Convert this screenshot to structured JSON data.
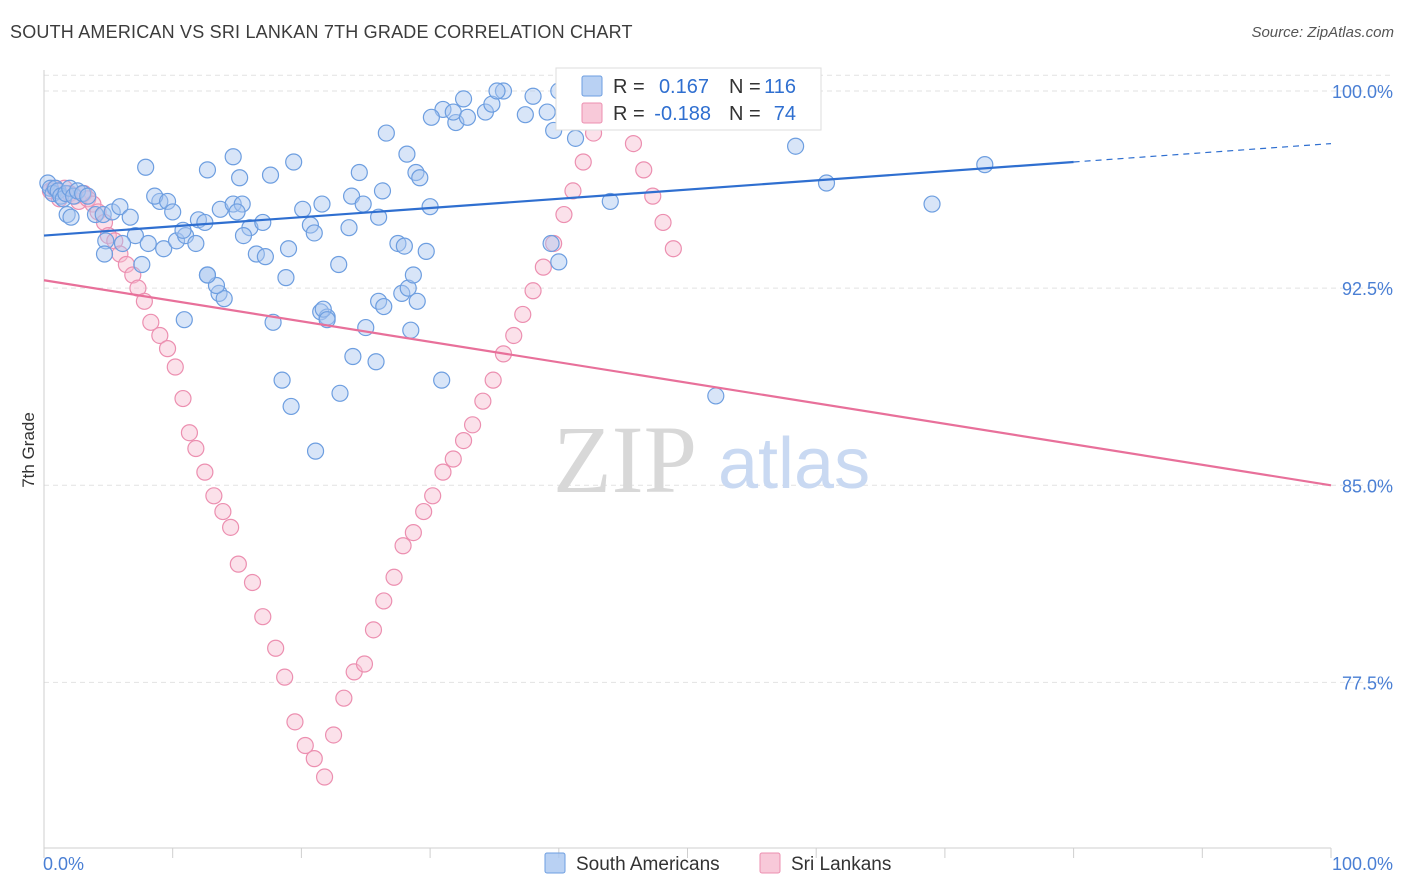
{
  "header": {
    "title": "SOUTH AMERICAN VS SRI LANKAN 7TH GRADE CORRELATION CHART",
    "source": "Source: ZipAtlas.com"
  },
  "watermark": {
    "zip": "ZIP",
    "atlas": "atlas"
  },
  "colors": {
    "blue_fill": "#a8c6f0",
    "blue_stroke": "#6d9ee0",
    "blue_line": "#2f6fd0",
    "pink_fill": "#f6bcd0",
    "pink_stroke": "#ec8fb0",
    "pink_line": "#e8709a",
    "grid": "#e2e2e2",
    "tick_text": "#4a7fd4"
  },
  "legend": {
    "r_label": "R =",
    "n_label": "N =",
    "series": [
      {
        "r": "0.167",
        "n": "116"
      },
      {
        "r": "-0.188",
        "n": "74"
      }
    ]
  },
  "chart_data": {
    "type": "scatter",
    "title": "SOUTH AMERICAN VS SRI LANKAN 7TH GRADE CORRELATION CHART",
    "xlabel": "",
    "ylabel": "7th Grade",
    "xlim": [
      0,
      100
    ],
    "ylim": [
      71.2,
      100.8
    ],
    "x_tick_labels": [
      "0.0%",
      "100.0%"
    ],
    "y_ticks": [
      100.0,
      92.5,
      85.0,
      77.5
    ],
    "y_tick_labels": [
      "100.0%",
      "92.5%",
      "85.0%",
      "77.5%"
    ],
    "grid": true,
    "legend_position": "top-center",
    "series": [
      {
        "name": "South Americans",
        "color": "blue",
        "r": 0.167,
        "n": 116,
        "trend": {
          "x0": 0,
          "y0": 94.5,
          "x1": 80,
          "y1": 97.3,
          "dash_to": 100,
          "dash_y": 98.0
        },
        "points": [
          [
            0.3,
            96.5
          ],
          [
            0.5,
            96.3
          ],
          [
            0.7,
            96.1
          ],
          [
            0.9,
            96.3
          ],
          [
            1.1,
            96.2
          ],
          [
            1.3,
            96.0
          ],
          [
            1.5,
            95.9
          ],
          [
            1.7,
            96.1
          ],
          [
            2.0,
            96.3
          ],
          [
            2.3,
            96.0
          ],
          [
            2.6,
            96.2
          ],
          [
            3.0,
            96.1
          ],
          [
            3.4,
            96.0
          ],
          [
            1.8,
            95.3
          ],
          [
            2.1,
            95.2
          ],
          [
            4.0,
            95.3
          ],
          [
            4.6,
            95.3
          ],
          [
            5.3,
            95.4
          ],
          [
            5.9,
            95.6
          ],
          [
            6.7,
            95.2
          ],
          [
            7.1,
            94.5
          ],
          [
            6.1,
            94.2
          ],
          [
            4.8,
            94.3
          ],
          [
            8.1,
            94.2
          ],
          [
            4.7,
            93.8
          ],
          [
            7.6,
            93.4
          ],
          [
            9.3,
            94.0
          ],
          [
            10.3,
            94.3
          ],
          [
            11.0,
            94.5
          ],
          [
            10.8,
            94.7
          ],
          [
            9.0,
            95.8
          ],
          [
            8.6,
            96.0
          ],
          [
            9.6,
            95.8
          ],
          [
            10.0,
            95.4
          ],
          [
            7.9,
            97.1
          ],
          [
            12.0,
            95.1
          ],
          [
            12.5,
            95.0
          ],
          [
            13.7,
            95.5
          ],
          [
            14.7,
            95.7
          ],
          [
            15.4,
            95.7
          ],
          [
            15.0,
            95.4
          ],
          [
            16.0,
            94.8
          ],
          [
            15.5,
            94.5
          ],
          [
            17.0,
            95.0
          ],
          [
            11.8,
            94.2
          ],
          [
            12.7,
            93.0
          ],
          [
            13.6,
            92.3
          ],
          [
            14.0,
            92.1
          ],
          [
            13.4,
            92.6
          ],
          [
            12.7,
            93.0
          ],
          [
            16.5,
            93.8
          ],
          [
            17.2,
            93.7
          ],
          [
            19.0,
            94.0
          ],
          [
            18.8,
            92.9
          ],
          [
            20.1,
            95.5
          ],
          [
            20.7,
            94.9
          ],
          [
            21.0,
            94.6
          ],
          [
            21.6,
            95.7
          ],
          [
            19.4,
            97.3
          ],
          [
            17.6,
            96.8
          ],
          [
            15.2,
            96.7
          ],
          [
            14.7,
            97.5
          ],
          [
            12.7,
            97.0
          ],
          [
            22.9,
            93.4
          ],
          [
            23.7,
            94.8
          ],
          [
            23.9,
            96.0
          ],
          [
            24.5,
            96.9
          ],
          [
            24.8,
            95.7
          ],
          [
            26.0,
            95.2
          ],
          [
            26.3,
            96.2
          ],
          [
            26.6,
            98.4
          ],
          [
            27.5,
            94.2
          ],
          [
            28.0,
            94.1
          ],
          [
            27.8,
            92.3
          ],
          [
            28.3,
            92.5
          ],
          [
            28.7,
            93.0
          ],
          [
            29.0,
            92.0
          ],
          [
            28.2,
            97.6
          ],
          [
            28.9,
            96.9
          ],
          [
            29.2,
            96.7
          ],
          [
            29.7,
            93.9
          ],
          [
            30.0,
            95.6
          ],
          [
            25.0,
            91.0
          ],
          [
            26.0,
            92.0
          ],
          [
            26.4,
            91.8
          ],
          [
            21.5,
            91.6
          ],
          [
            22.0,
            91.4
          ],
          [
            21.7,
            91.7
          ],
          [
            22.0,
            91.3
          ],
          [
            23.0,
            88.5
          ],
          [
            24.0,
            89.9
          ],
          [
            25.8,
            89.7
          ],
          [
            30.9,
            89.0
          ],
          [
            17.8,
            91.2
          ],
          [
            19.2,
            88.0
          ],
          [
            18.5,
            89.0
          ],
          [
            21.1,
            86.3
          ],
          [
            28.5,
            90.9
          ],
          [
            10.9,
            91.3
          ],
          [
            31.0,
            99.3
          ],
          [
            30.1,
            99.0
          ],
          [
            32.0,
            98.8
          ],
          [
            31.8,
            99.2
          ],
          [
            32.6,
            99.7
          ],
          [
            32.9,
            99.0
          ],
          [
            34.3,
            99.2
          ],
          [
            34.8,
            99.5
          ],
          [
            35.7,
            100.0
          ],
          [
            35.2,
            100.0
          ],
          [
            39.1,
            99.2
          ],
          [
            38.0,
            99.8
          ],
          [
            37.4,
            99.1
          ],
          [
            39.6,
            98.5
          ],
          [
            40.0,
            100.0
          ],
          [
            41.3,
            98.2
          ],
          [
            52.9,
            100.0
          ],
          [
            49.0,
            99.0
          ],
          [
            50.0,
            98.9
          ],
          [
            60.8,
            96.5
          ],
          [
            69.0,
            95.7
          ],
          [
            73.1,
            97.2
          ],
          [
            58.4,
            97.9
          ],
          [
            39.4,
            94.2
          ],
          [
            40.0,
            93.5
          ],
          [
            52.2,
            88.4
          ],
          [
            44.0,
            95.8
          ]
        ]
      },
      {
        "name": "Sri Lankans",
        "color": "pink",
        "r": -0.188,
        "n": 74,
        "trend": {
          "x0": 0,
          "y0": 92.8,
          "x1": 100,
          "y1": 85.0
        },
        "points": [
          [
            0.5,
            96.2
          ],
          [
            0.8,
            96.3
          ],
          [
            1.2,
            95.9
          ],
          [
            1.6,
            96.3
          ],
          [
            2.0,
            96.1
          ],
          [
            2.4,
            96.0
          ],
          [
            2.7,
            95.8
          ],
          [
            3.1,
            96.1
          ],
          [
            3.4,
            95.9
          ],
          [
            3.8,
            95.7
          ],
          [
            4.2,
            95.4
          ],
          [
            4.7,
            95.0
          ],
          [
            5.0,
            94.5
          ],
          [
            5.5,
            94.3
          ],
          [
            5.9,
            93.8
          ],
          [
            6.4,
            93.4
          ],
          [
            6.9,
            93.0
          ],
          [
            7.3,
            92.5
          ],
          [
            7.8,
            92.0
          ],
          [
            8.3,
            91.2
          ],
          [
            9.0,
            90.7
          ],
          [
            9.6,
            90.2
          ],
          [
            10.2,
            89.5
          ],
          [
            10.8,
            88.3
          ],
          [
            11.3,
            87.0
          ],
          [
            11.8,
            86.4
          ],
          [
            12.5,
            85.5
          ],
          [
            13.2,
            84.6
          ],
          [
            13.9,
            84.0
          ],
          [
            14.5,
            83.4
          ],
          [
            15.1,
            82.0
          ],
          [
            16.2,
            81.3
          ],
          [
            17.0,
            80.0
          ],
          [
            18.0,
            78.8
          ],
          [
            18.7,
            77.7
          ],
          [
            19.5,
            76.0
          ],
          [
            20.3,
            75.1
          ],
          [
            21.0,
            74.6
          ],
          [
            21.8,
            73.9
          ],
          [
            22.5,
            75.5
          ],
          [
            23.3,
            76.9
          ],
          [
            24.1,
            77.9
          ],
          [
            24.9,
            78.2
          ],
          [
            25.6,
            79.5
          ],
          [
            26.4,
            80.6
          ],
          [
            27.2,
            81.5
          ],
          [
            27.9,
            82.7
          ],
          [
            28.7,
            83.2
          ],
          [
            29.5,
            84.0
          ],
          [
            30.2,
            84.6
          ],
          [
            31.0,
            85.5
          ],
          [
            31.8,
            86.0
          ],
          [
            32.6,
            86.7
          ],
          [
            33.3,
            87.3
          ],
          [
            34.1,
            88.2
          ],
          [
            34.9,
            89.0
          ],
          [
            35.7,
            90.0
          ],
          [
            36.5,
            90.7
          ],
          [
            37.2,
            91.5
          ],
          [
            38.0,
            92.4
          ],
          [
            38.8,
            93.3
          ],
          [
            39.6,
            94.2
          ],
          [
            40.4,
            95.3
          ],
          [
            41.1,
            96.2
          ],
          [
            41.9,
            97.3
          ],
          [
            42.7,
            98.4
          ],
          [
            43.5,
            99.4
          ],
          [
            44.2,
            100.0
          ],
          [
            45.0,
            99.0
          ],
          [
            45.8,
            98.0
          ],
          [
            46.6,
            97.0
          ],
          [
            47.3,
            96.0
          ],
          [
            48.1,
            95.0
          ],
          [
            48.9,
            94.0
          ]
        ]
      }
    ]
  },
  "bottom_legend": [
    {
      "label": "South Americans"
    },
    {
      "label": "Sri Lankans"
    }
  ]
}
